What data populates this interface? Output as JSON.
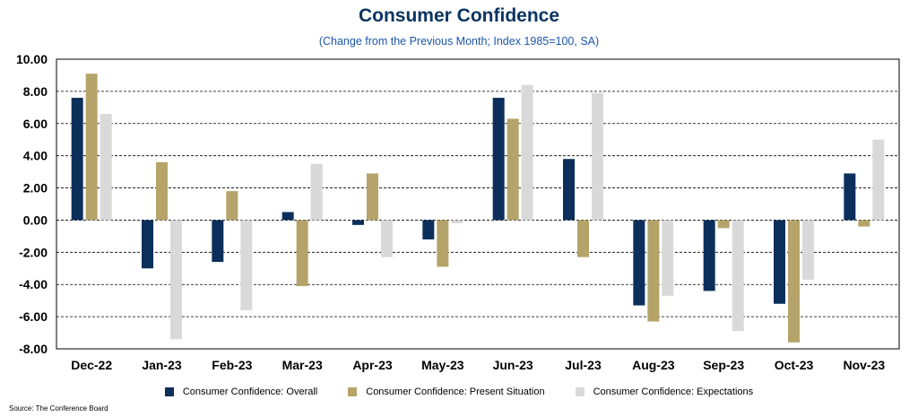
{
  "chart_data": {
    "type": "bar",
    "title": "Consumer Confidence",
    "subtitle": "(Change from the Previous Month; Index 1985=100, SA)",
    "categories": [
      "Dec-22",
      "Jan-23",
      "Feb-23",
      "Mar-23",
      "Apr-23",
      "May-23",
      "Jun-23",
      "Jul-23",
      "Aug-23",
      "Sep-23",
      "Oct-23",
      "Nov-23"
    ],
    "series": [
      {
        "name": "Consumer Confidence: Overall",
        "color": "#0b2f5a",
        "values": [
          7.6,
          -3.0,
          -2.6,
          0.5,
          -0.3,
          -1.2,
          7.6,
          3.8,
          -5.3,
          -4.4,
          -5.2,
          2.9
        ]
      },
      {
        "name": "Consumer Confidence: Present Situation",
        "color": "#b5a46a",
        "values": [
          9.1,
          3.6,
          1.8,
          -4.1,
          2.9,
          -2.9,
          6.3,
          -2.3,
          -6.3,
          -0.5,
          -7.6,
          -0.4
        ]
      },
      {
        "name": "Consumer Confidence: Expectations",
        "color": "#d9d9d9",
        "values": [
          6.6,
          -7.4,
          -5.6,
          3.5,
          -2.3,
          -0.2,
          8.4,
          7.9,
          -4.7,
          -6.9,
          -3.7,
          5.0
        ]
      }
    ],
    "ylim": [
      -8,
      10
    ],
    "yticks": [
      "10.00",
      "8.00",
      "6.00",
      "4.00",
      "2.00",
      "0.00",
      "-2.00",
      "-4.00",
      "-6.00",
      "-8.00"
    ],
    "grid": "dashed horizontal",
    "legend_position": "bottom"
  },
  "source": "Source: The Conference Board"
}
